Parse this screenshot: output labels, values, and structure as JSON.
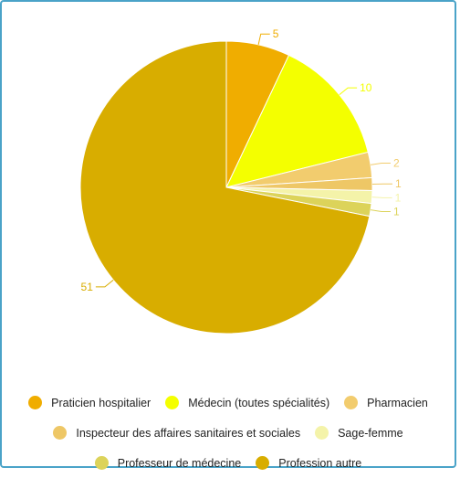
{
  "chart_data": {
    "type": "pie",
    "series": [
      {
        "name": "Praticien hospitalier",
        "value": 5,
        "color": "#f0ad00"
      },
      {
        "name": "Médecin (toutes spécialités)",
        "value": 10,
        "color": "#f4ff00"
      },
      {
        "name": "Pharmacien",
        "value": 2,
        "color": "#f2cc6e"
      },
      {
        "name": "Inspecteur des affaires sanitaires et sociales",
        "value": 1,
        "color": "#eec766"
      },
      {
        "name": "Sage-femme",
        "value": 1,
        "color": "#f4f3a9"
      },
      {
        "name": "Professeur de médecine",
        "value": 1,
        "color": "#dcd35a"
      },
      {
        "name": "Profession autre",
        "value": 51,
        "color": "#d8ad00"
      }
    ],
    "legend_position": "bottom"
  }
}
